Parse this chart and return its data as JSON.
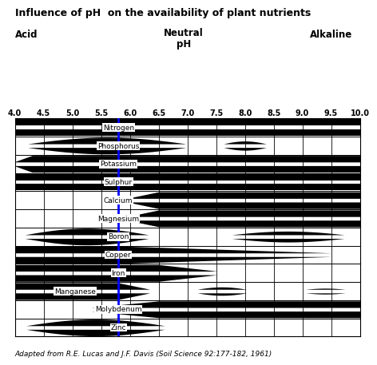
{
  "title": "Influence of pH  on the availability of plant nutrients",
  "caption": "Adapted from R.E. Lucas and J.F. Davis (Soil Science 92:177-182, 1961)",
  "ph_min": 4.0,
  "ph_max": 10.0,
  "ph_ticks": [
    4.0,
    4.5,
    5.0,
    5.5,
    6.0,
    6.5,
    7.0,
    7.5,
    8.0,
    8.5,
    9.0,
    9.5,
    10.0
  ],
  "blue_line_ph": 5.8,
  "nutrient_names": [
    "Nitrogen",
    "Phosphorus",
    "Potassium",
    "Sulphur",
    "Calcium",
    "Magnesium",
    "Boron",
    "Copper",
    "Iron",
    "Manganese",
    "Molybdenum",
    "Zinc"
  ],
  "nutrient_label_ph": [
    5.8,
    5.8,
    5.8,
    5.8,
    5.8,
    5.8,
    5.8,
    5.8,
    5.8,
    5.05,
    5.8,
    5.8
  ],
  "band_color": "#000000",
  "blue_color": "#0000ff",
  "bg_color": "#ffffff",
  "title_fontsize": 9.0,
  "label_fontsize": 6.5,
  "tick_fontsize": 7.0,
  "caption_fontsize": 6.5,
  "header_fontsize": 8.5
}
